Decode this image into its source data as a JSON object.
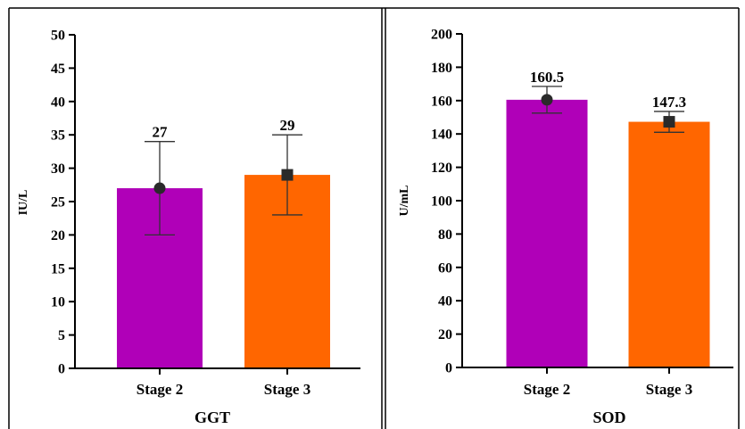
{
  "chart_data": [
    {
      "type": "bar",
      "title": "",
      "xlabel": "GGT",
      "ylabel": "IU/L",
      "categories": [
        "Stage 2",
        "Stage 3"
      ],
      "values": [
        27,
        29
      ],
      "data_labels": [
        "27",
        "29"
      ],
      "error_low": [
        20,
        23
      ],
      "error_high": [
        34,
        35
      ],
      "markers": [
        "circle",
        "square"
      ],
      "colors": [
        "#b000b8",
        "#ff6600"
      ],
      "ylim": [
        0,
        50
      ],
      "yticks": [
        0,
        5,
        10,
        15,
        20,
        25,
        30,
        35,
        40,
        45,
        50
      ],
      "grid": false
    },
    {
      "type": "bar",
      "title": "",
      "xlabel": "SOD",
      "ylabel": "U/mL",
      "categories": [
        "Stage 2",
        "Stage 3"
      ],
      "values": [
        160.5,
        147.3
      ],
      "data_labels": [
        "160.5",
        "147.3"
      ],
      "error_low": [
        152.5,
        141
      ],
      "error_high": [
        168.5,
        153.5
      ],
      "markers": [
        "circle",
        "square"
      ],
      "colors": [
        "#b000b8",
        "#ff6600"
      ],
      "ylim": [
        0,
        200
      ],
      "yticks": [
        0,
        20,
        40,
        60,
        80,
        100,
        120,
        140,
        160,
        180,
        200
      ],
      "grid": false
    }
  ]
}
